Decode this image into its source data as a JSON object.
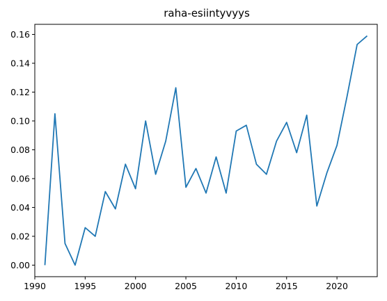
{
  "chart_data": {
    "type": "line",
    "title": "raha-esiintyvyys",
    "xlabel": "",
    "ylabel": "",
    "xlim": [
      1990,
      2024
    ],
    "ylim": [
      -0.008,
      0.167
    ],
    "xticks": [
      1990,
      1995,
      2000,
      2005,
      2010,
      2015,
      2020
    ],
    "yticks": [
      "0.00",
      "0.02",
      "0.04",
      "0.06",
      "0.08",
      "0.10",
      "0.12",
      "0.14",
      "0.16"
    ],
    "grid": false,
    "series_color": "#1f77b4",
    "x": [
      1991,
      1992,
      1993,
      1994,
      1995,
      1996,
      1997,
      1998,
      1999,
      2000,
      2001,
      2002,
      2003,
      2004,
      2005,
      2006,
      2007,
      2008,
      2009,
      2010,
      2011,
      2012,
      2013,
      2014,
      2015,
      2016,
      2017,
      2018,
      2019,
      2020,
      2021,
      2022,
      2023
    ],
    "values": [
      0.0,
      0.105,
      0.015,
      0.0,
      0.026,
      0.02,
      0.051,
      0.039,
      0.07,
      0.053,
      0.1,
      0.063,
      0.086,
      0.123,
      0.054,
      0.067,
      0.05,
      0.075,
      0.05,
      0.093,
      0.097,
      0.07,
      0.063,
      0.086,
      0.099,
      0.078,
      0.104,
      0.041,
      0.064,
      0.083,
      0.117,
      0.153,
      0.159
    ]
  }
}
